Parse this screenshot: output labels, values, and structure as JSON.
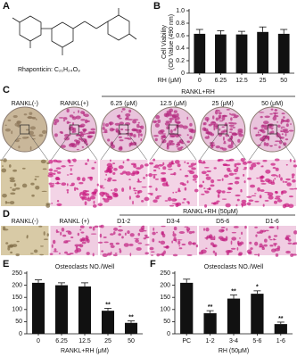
{
  "figure": {
    "A": {
      "letter": "A",
      "caption": "Rhaponticin: C₂₁H₂₄O₉"
    },
    "C": {
      "letter": "C",
      "header": "RANKL+RH",
      "columns": [
        "RANKL(-)",
        "RANKL(+)",
        "6.25 (μM)",
        "12.5 (μM)",
        "25 (μM)",
        "50 (μM)"
      ]
    },
    "D": {
      "letter": "D",
      "header": "RANKL+RH (50μM)",
      "columns": [
        "RANKL(-)",
        "RANKL (+)",
        "D1-2",
        "D3-4",
        "D5-6",
        "D1-6"
      ]
    }
  },
  "chart_data": [
    {
      "type": "bar",
      "panel": "B",
      "ylabel": [
        "Cell Viability",
        "(OD Value (490 nm)"
      ],
      "xlabel": "RH (μM)",
      "categories": [
        "0",
        "6.25",
        "12.5",
        "25",
        "50"
      ],
      "values": [
        0.63,
        0.62,
        0.62,
        0.66,
        0.63
      ],
      "errors": [
        0.07,
        0.06,
        0.05,
        0.08,
        0.07
      ],
      "color": "#111111",
      "ylim": [
        0,
        1
      ],
      "yticks": [
        0,
        0.2,
        0.4,
        0.6,
        0.8,
        {
          "value": 1,
          "label": "1.0"
        }
      ]
    },
    {
      "type": "bar",
      "panel": "E",
      "title": "Osteoclasts NO./Well",
      "xlabel": "RANKL+RH (μM)",
      "categories": [
        "0",
        "6.25",
        "12.5",
        "25",
        "50"
      ],
      "values": [
        210,
        200,
        195,
        95,
        45
      ],
      "errors": [
        12,
        10,
        15,
        10,
        8
      ],
      "annotations": [
        null,
        null,
        null,
        "**",
        "**"
      ],
      "color": "#111111",
      "ylim": [
        0,
        250
      ],
      "yticks": [
        0,
        50,
        100,
        150,
        200,
        250
      ]
    },
    {
      "type": "bar",
      "panel": "F",
      "title": "Osteoclasts NO./Well",
      "xlabel": "RH (50μM)",
      "categories": [
        "PC",
        "1-2",
        "3-4",
        "5-6",
        "1-6"
      ],
      "values": [
        210,
        85,
        145,
        165,
        40
      ],
      "errors": [
        15,
        10,
        15,
        12,
        8
      ],
      "annotations": [
        null,
        "**",
        "**",
        "*",
        "**"
      ],
      "color": "#111111",
      "ylim": [
        0,
        250
      ],
      "yticks": [
        0,
        50,
        100,
        150,
        200,
        250
      ]
    }
  ]
}
